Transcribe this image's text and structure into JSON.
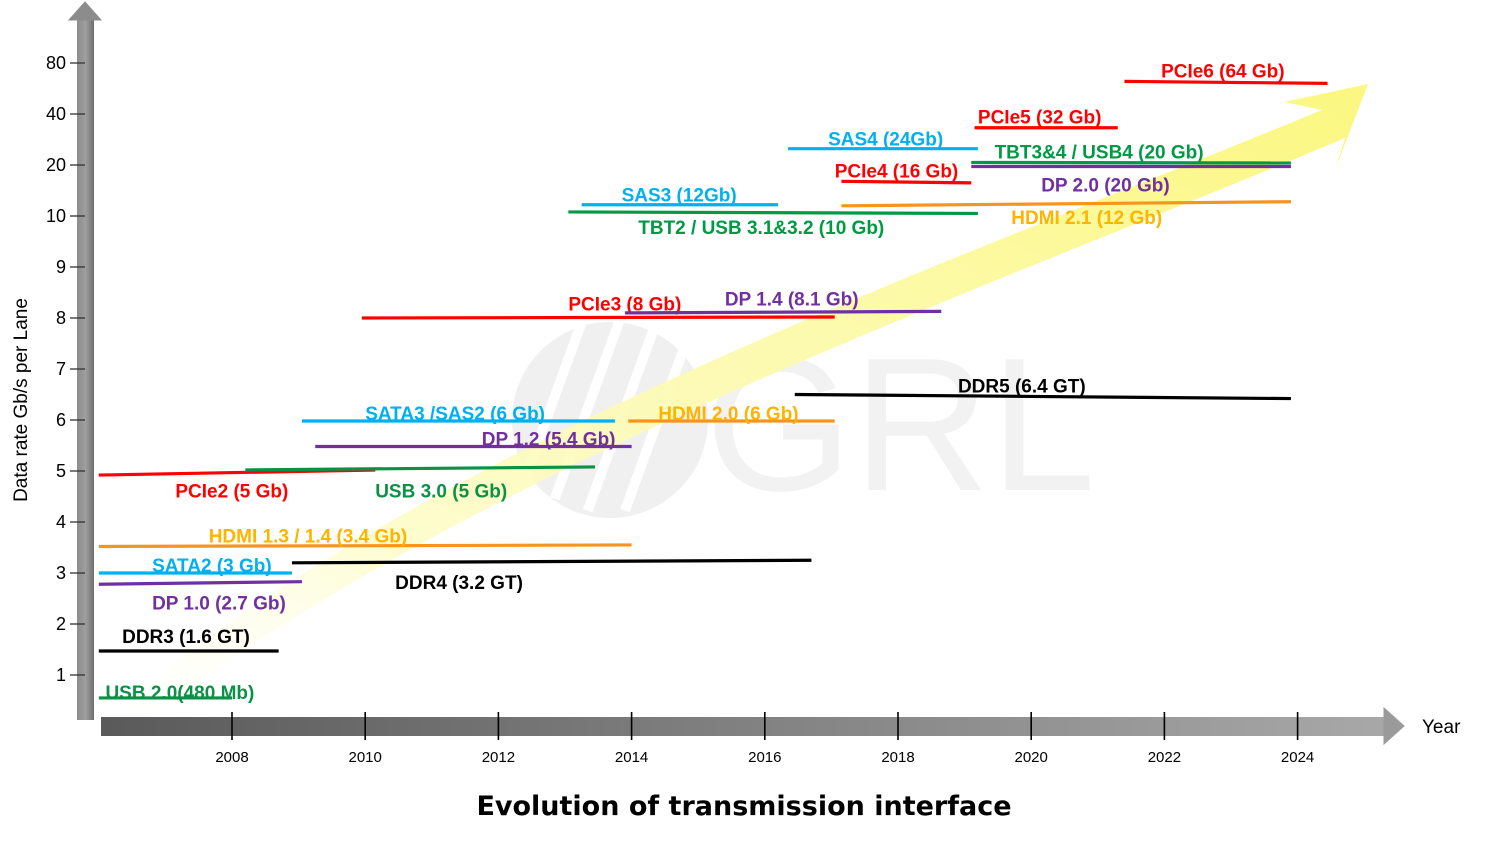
{
  "chart_data": {
    "type": "timeline",
    "title": "Evolution of transmission interface",
    "xlabel": "Year",
    "ylabel": "Data rate Gb/s per Lane",
    "watermark": "GRL",
    "x_ticks": [
      2008,
      2010,
      2012,
      2014,
      2016,
      2018,
      2020,
      2022,
      2024
    ],
    "y_ticks": [
      {
        "label": "1",
        "level": 1
      },
      {
        "label": "2",
        "level": 2
      },
      {
        "label": "3",
        "level": 3
      },
      {
        "label": "4",
        "level": 4
      },
      {
        "label": "5",
        "level": 5
      },
      {
        "label": "6",
        "level": 6
      },
      {
        "label": "7",
        "level": 7
      },
      {
        "label": "8",
        "level": 8
      },
      {
        "label": "9",
        "level": 9
      },
      {
        "label": "10",
        "level": 10
      },
      {
        "label": "20",
        "level": 11
      },
      {
        "label": "40",
        "level": 12
      },
      {
        "label": "80",
        "level": 13
      }
    ],
    "xlim": [
      2006.0,
      2025.5
    ],
    "colors": {
      "usb": "#0a9146",
      "ddr": "#000000",
      "dp": "#7030a0",
      "sata": "#00b0f0",
      "hdmi": "#ffb400",
      "hdmi_line": "#f7941d",
      "pcie": "#ff0000",
      "tbt": "#009a44"
    },
    "series": [
      {
        "name": "USB 2.0(480 Mb)",
        "start": 2006.0,
        "end": 2008.0,
        "level": 0.55,
        "color": "#0a9146",
        "label_x": 2006.1,
        "label_level": 0.67,
        "anchor": "start"
      },
      {
        "name": "DDR3 (1.6 GT)",
        "start": 2006.0,
        "end": 2008.7,
        "level": 1.47,
        "color": "#000000",
        "label_x": 2006.35,
        "label_level": 1.76,
        "anchor": "start"
      },
      {
        "name": "DP 1.0 (2.7 Gb)",
        "start": 2006.0,
        "end": 2009.05,
        "level": 2.78,
        "level_end": 2.83,
        "color": "#7030a0",
        "label_x": 2006.8,
        "label_level": 2.42,
        "anchor": "start"
      },
      {
        "name": "SATA2 (3 Gb)",
        "start": 2006.0,
        "end": 2008.9,
        "level": 3.0,
        "color": "#00b0f0",
        "label_x": 2006.8,
        "label_level": 3.16,
        "anchor": "start"
      },
      {
        "name": "DDR4 (3.2 GT)",
        "start": 2008.9,
        "end": 2016.7,
        "level": 3.2,
        "level_end": 3.25,
        "color": "#000000",
        "label_x": 2010.45,
        "label_level": 2.82,
        "anchor": "start"
      },
      {
        "name": "HDMI 1.3 / 1.4 (3.4 Gb)",
        "start": 2006.0,
        "end": 2014.0,
        "level": 3.52,
        "level_end": 3.55,
        "color": "#f7941d",
        "label_color": "#ffb400",
        "label_x": 2007.65,
        "label_level": 3.74,
        "anchor": "start"
      },
      {
        "name": "PCIe2 (5 Gb)",
        "start": 2006.0,
        "end": 2010.15,
        "level": 4.92,
        "level_end": 5.02,
        "color": "#ff0000",
        "label_x": 2007.15,
        "label_level": 4.62,
        "anchor": "start"
      },
      {
        "name": "USB 3.0 (5 Gb)",
        "start": 2008.2,
        "end": 2013.45,
        "level": 5.02,
        "level_end": 5.08,
        "color": "#0a9146",
        "label_x": 2010.15,
        "label_level": 4.62,
        "anchor": "start"
      },
      {
        "name": "DP 1.2 (5.4 Gb)",
        "start": 2009.25,
        "end": 2014.0,
        "level": 5.48,
        "color": "#7030a0",
        "label_x": 2011.75,
        "label_level": 5.64,
        "anchor": "start"
      },
      {
        "name": "SATA3 /SAS2 (6 Gb)",
        "start": 2009.05,
        "end": 2013.75,
        "level": 5.98,
        "color": "#00b0f0",
        "label_x": 2010.0,
        "label_level": 6.14,
        "anchor": "start"
      },
      {
        "name": "HDMI 2.0 (6 Gb)",
        "start": 2013.95,
        "end": 2017.05,
        "level": 5.98,
        "color": "#f7941d",
        "label_color": "#ffb400",
        "label_x": 2014.4,
        "label_level": 6.14,
        "anchor": "start"
      },
      {
        "name": "DDR5 (6.4 GT)",
        "start": 2016.45,
        "end": 2023.9,
        "level": 6.5,
        "level_end": 6.42,
        "color": "#000000",
        "label_x": 2018.9,
        "label_level": 6.68,
        "anchor": "start"
      },
      {
        "name": "PCIe3 (8 Gb)",
        "start": 2009.95,
        "end": 2017.05,
        "level": 8.0,
        "level_end": 8.02,
        "color": "#ff0000",
        "label_x": 2013.05,
        "label_level": 8.28,
        "anchor": "start"
      },
      {
        "name": "DP 1.4 (8.1 Gb)",
        "start": 2013.9,
        "end": 2018.65,
        "level": 8.1,
        "level_end": 8.13,
        "color": "#7030a0",
        "label_x": 2015.4,
        "label_level": 8.38,
        "anchor": "start"
      },
      {
        "name": "TBT2 / USB 3.1&3.2 (10 Gb)",
        "start": 2013.05,
        "end": 2019.2,
        "level": 10.08,
        "level_end": 10.05,
        "color": "#009a44",
        "label_x": 2014.1,
        "label_level": 9.78,
        "anchor": "start"
      },
      {
        "name": "SAS3 (12Gb)",
        "start": 2013.25,
        "end": 2016.2,
        "level": 10.22,
        "color": "#00b0f0",
        "label_x": 2013.85,
        "label_level": 10.42,
        "anchor": "start"
      },
      {
        "name": "HDMI 2.1 (12 Gb)",
        "start": 2017.15,
        "end": 2023.9,
        "level": 10.2,
        "level_end": 10.28,
        "color": "#f7941d",
        "label_color": "#ffb400",
        "label_x": 2019.7,
        "label_level": 9.98,
        "anchor": "start"
      },
      {
        "name": "PCIe4 (16 Gb)",
        "start": 2017.15,
        "end": 2019.1,
        "level": 10.68,
        "level_end": 10.65,
        "color": "#ff0000",
        "label_x": 2017.05,
        "label_level": 10.89,
        "anchor": "start"
      },
      {
        "name": "DP 2.0 (20 Gb)",
        "start": 2019.1,
        "end": 2023.9,
        "level": 10.97,
        "color": "#7030a0",
        "label_x": 2020.15,
        "label_level": 10.62,
        "anchor": "start"
      },
      {
        "name": "TBT3&4 / USB4 (20 Gb)",
        "start": 2019.1,
        "end": 2023.9,
        "level": 11.05,
        "level_end": 11.04,
        "color": "#009a44",
        "label_x": 2019.45,
        "label_level": 11.26,
        "anchor": "start"
      },
      {
        "name": "SAS4 (24Gb)",
        "start": 2016.35,
        "end": 2019.2,
        "level": 11.32,
        "color": "#00b0f0",
        "label_x": 2016.95,
        "label_level": 11.52,
        "anchor": "start"
      },
      {
        "name": "PCIe5 (32 Gb)",
        "start": 2019.15,
        "end": 2021.3,
        "level": 11.73,
        "color": "#ff0000",
        "label_x": 2019.2,
        "label_level": 11.95,
        "anchor": "start"
      },
      {
        "name": "PCIe6 (64 Gb)",
        "start": 2021.4,
        "end": 2024.45,
        "level": 12.64,
        "level_end": 12.6,
        "color": "#ff0000",
        "label_x": 2021.95,
        "label_level": 12.85,
        "anchor": "start"
      }
    ]
  }
}
